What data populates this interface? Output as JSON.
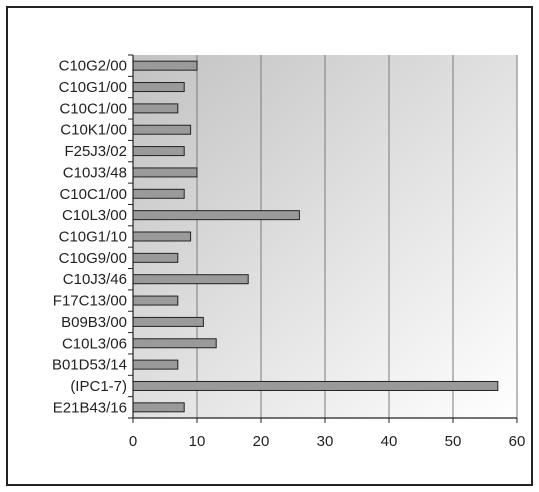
{
  "chart_data": {
    "type": "bar",
    "orientation": "horizontal",
    "categories": [
      "C10G2/00",
      "C10G1/00",
      "C10C1/00",
      "C10K1/00",
      "F25J3/02",
      "C10J3/48",
      "C10C1/00",
      "C10L3/00",
      "C10G1/10",
      "C10G9/00",
      "C10J3/46",
      "F17C13/00",
      "B09B3/00",
      "C10L3/06",
      "B01D53/14",
      "(IPC1-7)",
      "E21B43/16"
    ],
    "values": [
      10,
      8,
      7,
      9,
      8,
      10,
      8,
      26,
      9,
      7,
      18,
      7,
      11,
      13,
      7,
      57,
      8
    ],
    "xlim": [
      0,
      60
    ],
    "x_ticks": [
      "0",
      "10",
      "20",
      "30",
      "40",
      "50",
      "60"
    ],
    "grid": "vertical",
    "title": "",
    "xlabel": "",
    "ylabel": "",
    "colors": {
      "bar_fill": "#9a9a9a",
      "bar_stroke": "#222222",
      "plot_bg_start": "#c2c2c2",
      "plot_bg_end": "#ffffff",
      "grid": "#7a7a7a"
    }
  }
}
